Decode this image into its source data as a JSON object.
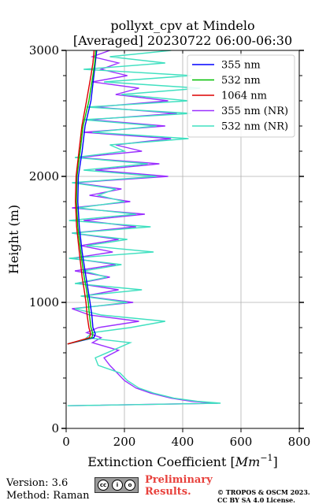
{
  "chart_data": {
    "type": "line",
    "title_line1": "pollyxt_cpv at Mindelo",
    "title_line2": "[Averaged] 20230722 06:00-06:30",
    "xlabel": "Extinction Coefficient [$Mm^{-1}$]",
    "ylabel": "Height (m)",
    "xlim": [
      0,
      800
    ],
    "ylim": [
      0,
      3000
    ],
    "xticks": [
      "0",
      "200",
      "400",
      "600",
      "800"
    ],
    "yticks": [
      "0",
      "1000",
      "2000",
      "3000"
    ],
    "grid": true,
    "legend_position": "top-right",
    "series": [
      {
        "name": "355 nm",
        "color": "#0000ff",
        "y": [
          670,
          700,
          720,
          750,
          800,
          900,
          1000,
          1100,
          1200,
          1400,
          1600,
          1800,
          2000,
          2200,
          2400,
          2600,
          2800,
          2900,
          3000
        ],
        "x": [
          5,
          60,
          95,
          100,
          92,
          88,
          82,
          75,
          68,
          55,
          45,
          40,
          42,
          55,
          65,
          85,
          95,
          100,
          105
        ]
      },
      {
        "name": "532 nm",
        "color": "#00c000",
        "y": [
          670,
          700,
          720,
          750,
          800,
          900,
          1000,
          1100,
          1200,
          1400,
          1600,
          1800,
          2000,
          2200,
          2400,
          2600,
          2800,
          2900,
          3000
        ],
        "x": [
          5,
          55,
          88,
          92,
          85,
          80,
          76,
          70,
          62,
          50,
          40,
          35,
          37,
          48,
          58,
          78,
          92,
          98,
          102
        ]
      },
      {
        "name": "1064 nm",
        "color": "#dd0000",
        "y": [
          670,
          700,
          720,
          750,
          800,
          900,
          1000,
          1100,
          1200,
          1400,
          1600,
          1800,
          2000,
          2200,
          2400,
          2600,
          2800,
          2900,
          3000
        ],
        "x": [
          5,
          50,
          80,
          84,
          78,
          72,
          68,
          62,
          55,
          45,
          36,
          32,
          34,
          44,
          54,
          70,
          85,
          92,
          96
        ]
      },
      {
        "name": "355 nm (NR)",
        "color": "#9b30ff",
        "y": [
          180,
          200,
          215,
          240,
          280,
          320,
          380,
          440,
          500,
          560,
          620,
          680,
          720,
          760,
          800,
          850,
          900,
          950,
          1000,
          1050,
          1100,
          1150,
          1200,
          1250,
          1300,
          1350,
          1400,
          1450,
          1500,
          1550,
          1600,
          1650,
          1700,
          1750,
          1800,
          1850,
          1900,
          1950,
          2000,
          2050,
          2100,
          2150,
          2200,
          2250,
          2300,
          2350,
          2400,
          2450,
          2500,
          2550,
          2600,
          2650,
          2700,
          2750,
          2800,
          2850,
          2900,
          2950,
          3000
        ],
        "x": [
          10,
          520,
          430,
          360,
          290,
          240,
          200,
          175,
          150,
          130,
          180,
          90,
          120,
          70,
          110,
          250,
          80,
          20,
          230,
          60,
          180,
          40,
          150,
          30,
          170,
          20,
          160,
          50,
          180,
          20,
          240,
          60,
          270,
          20,
          220,
          80,
          190,
          30,
          350,
          100,
          320,
          40,
          260,
          170,
          360,
          60,
          340,
          80,
          380,
          100,
          350,
          170,
          250,
          90,
          210,
          120,
          180,
          90,
          150
        ]
      },
      {
        "name": "532 nm (NR)",
        "color": "#40e0c0",
        "y": [
          180,
          200,
          215,
          240,
          280,
          320,
          380,
          440,
          500,
          560,
          620,
          680,
          720,
          760,
          800,
          850,
          900,
          950,
          1000,
          1050,
          1100,
          1150,
          1200,
          1250,
          1300,
          1350,
          1400,
          1450,
          1500,
          1550,
          1600,
          1650,
          1700,
          1750,
          1800,
          1850,
          1900,
          1950,
          2000,
          2050,
          2100,
          2150,
          2200,
          2250,
          2300,
          2350,
          2400,
          2450,
          2500,
          2550,
          2600,
          2650,
          2700,
          2750,
          2800,
          2850,
          2900,
          2950,
          3000
        ],
        "x": [
          5,
          530,
          450,
          370,
          300,
          250,
          210,
          185,
          110,
          100,
          160,
          220,
          70,
          90,
          220,
          340,
          120,
          30,
          210,
          50,
          260,
          30,
          140,
          60,
          190,
          10,
          300,
          70,
          210,
          20,
          290,
          10,
          240,
          40,
          200,
          110,
          170,
          20,
          310,
          60,
          280,
          30,
          200,
          150,
          420,
          90,
          310,
          60,
          430,
          70,
          420,
          190,
          460,
          130,
          430,
          60,
          340,
          150,
          360
        ]
      }
    ]
  },
  "footer": {
    "version": "Version: 3.6",
    "method": "Method: Raman",
    "preliminary_line1": "Preliminary",
    "preliminary_line2": "Results.",
    "copyright_line1": "© TROPOS & OSCM 2023.",
    "copyright_line2": "CC BY SA 4.0 License.",
    "badge_text": "BY SA"
  }
}
